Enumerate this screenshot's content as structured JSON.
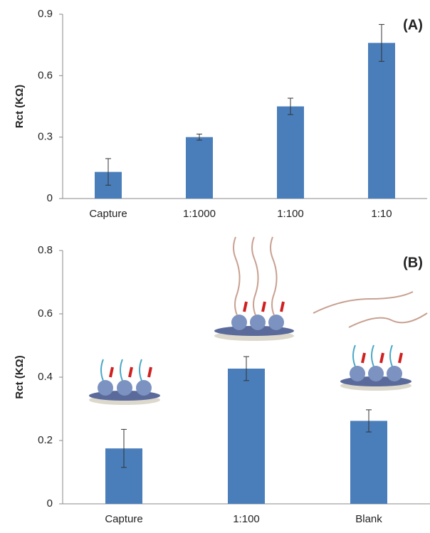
{
  "chart_data": [
    {
      "type": "bar",
      "label": "(A)",
      "y_label": "Rct (KΩ)",
      "categories": [
        "Capture",
        "1:1000",
        "1:100",
        "1:10"
      ],
      "values": [
        0.13,
        0.3,
        0.45,
        0.76
      ],
      "errors": [
        0.065,
        0.015,
        0.04,
        0.09
      ],
      "color": "#4a7ebb",
      "ylim": [
        0,
        0.9
      ],
      "yticks": [
        0,
        0.3,
        0.6,
        0.9
      ]
    },
    {
      "type": "bar",
      "label": "(B)",
      "y_label": "Rct (KΩ)",
      "categories": [
        "Capture",
        "1:100",
        "Blank"
      ],
      "values": [
        0.175,
        0.427,
        0.262
      ],
      "errors": [
        0.06,
        0.038,
        0.035
      ],
      "color": "#4a7ebb",
      "ylim": [
        0,
        0.8
      ],
      "yticks": [
        0,
        0.2,
        0.4,
        0.6,
        0.8
      ]
    }
  ]
}
